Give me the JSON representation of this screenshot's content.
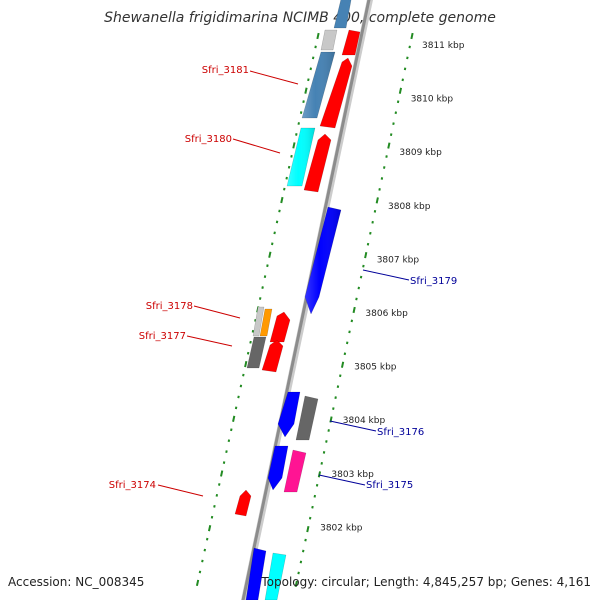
{
  "title": "Shewanella frigidimarina NCIMB 400, complete genome",
  "accession": "Accession: NC_008345",
  "topology": "Topology: circular; Length: 4,845,257 bp; Genes: 4,161",
  "colors": {
    "forward_label": "#cc0000",
    "reverse_label": "#000099",
    "tick": "#228B22",
    "backbone": "#888888"
  },
  "ruler": [
    {
      "kbp": 3811,
      "label": "3811 kbp"
    },
    {
      "kbp": 3810,
      "label": "3810 kbp"
    },
    {
      "kbp": 3809,
      "label": "3809 kbp"
    },
    {
      "kbp": 3808,
      "label": "3808 kbp"
    },
    {
      "kbp": 3807,
      "label": "3807 kbp"
    },
    {
      "kbp": 3806,
      "label": "3806 kbp"
    },
    {
      "kbp": 3805,
      "label": "3805 kbp"
    },
    {
      "kbp": 3804,
      "label": "3804 kbp"
    },
    {
      "kbp": 3803,
      "label": "3803 kbp"
    },
    {
      "kbp": 3802,
      "label": "3802 kbp"
    }
  ],
  "gene_labels": [
    {
      "text": "Sfri_3181",
      "strand": "forward"
    },
    {
      "text": "Sfri_3180",
      "strand": "forward"
    },
    {
      "text": "Sfri_3179",
      "strand": "reverse"
    },
    {
      "text": "Sfri_3178",
      "strand": "forward"
    },
    {
      "text": "Sfri_3177",
      "strand": "forward"
    },
    {
      "text": "Sfri_3176",
      "strand": "reverse"
    },
    {
      "text": "Sfri_3175",
      "strand": "reverse"
    },
    {
      "text": "Sfri_3174",
      "strand": "forward"
    }
  ]
}
